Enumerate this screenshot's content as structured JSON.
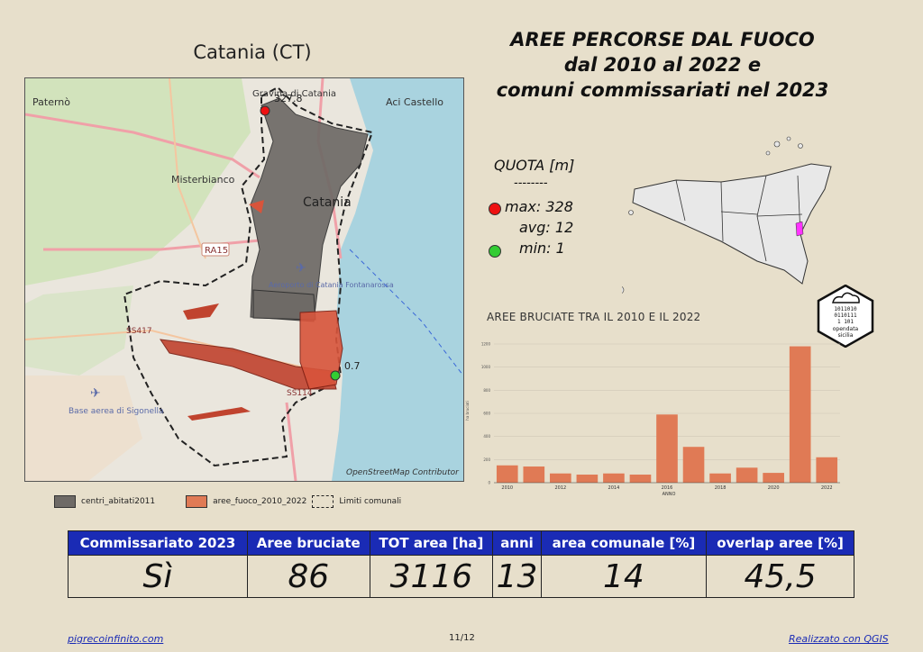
{
  "map": {
    "title": "Catania (CT)",
    "places": {
      "paterno": "Paternò",
      "gravina": "Gravina di Catania",
      "aci_castello": "Aci Castello",
      "misterbianco": "Misterbianco",
      "catania": "Catania",
      "ra15": "RA15",
      "aeroporto": "Aeroporto di Catania Fontanarossa",
      "ss417": "SS417",
      "ss114": "SS114",
      "sigonella": "Base aerea di Sigonella"
    },
    "max_label": "327.8",
    "min_label": "0.7",
    "attribution": "OpenStreetMap Contributor"
  },
  "legend": {
    "centri": "centri_abitati2011",
    "aree": "aree_fuoco_2010_2022",
    "limiti": "Limiti comunali"
  },
  "title_lines": [
    "AREE PERCORSE DAL FUOCO",
    "dal 2010 al 2022 e",
    "comuni commissariati nel 2023"
  ],
  "quota": {
    "label": "QUOTA [m]",
    "separator": "--------",
    "max": "max: 328",
    "avg": "avg: 12",
    "min": "min: 1"
  },
  "colors": {
    "header": "#1a2bb5",
    "bar": "#e07a55",
    "max_dot": "#ee1111",
    "min_dot": "#33cc33",
    "highlight": "#ff33ff"
  },
  "badge": {
    "bits1": "1011010",
    "bits2": "0110111",
    "bits3": "1 101",
    "text1": "opendata",
    "text2": "sicilia"
  },
  "chart_title": "AREE BRUCIATE TRA IL 2010 E IL 2022",
  "chart_data": {
    "type": "bar",
    "x": [
      2010,
      2011,
      2012,
      2013,
      2014,
      2015,
      2016,
      2017,
      2018,
      2019,
      2020,
      2021,
      2022
    ],
    "values": [
      150,
      140,
      80,
      70,
      80,
      70,
      590,
      310,
      80,
      130,
      85,
      1180,
      220
    ],
    "xlabel": "ANNO",
    "ylabel": "ha bruciati",
    "ylim": [
      0,
      1200
    ],
    "yticks": [
      0,
      200,
      400,
      600,
      800,
      1000,
      1200
    ],
    "xticks": [
      2010,
      2012,
      2014,
      2016,
      2018,
      2020,
      2022
    ]
  },
  "table": {
    "headers": [
      "Commissariato 2023",
      "Aree bruciate",
      "TOT area [ha]",
      "anni",
      "area comunale [%]",
      "overlap aree [%]"
    ],
    "values": [
      "Sì",
      "86",
      "3116",
      "13",
      "14",
      "45,5"
    ]
  },
  "footer": {
    "left": "pigrecoinfinito.com",
    "center": "11/12",
    "right": "Realizzato con QGIS"
  }
}
